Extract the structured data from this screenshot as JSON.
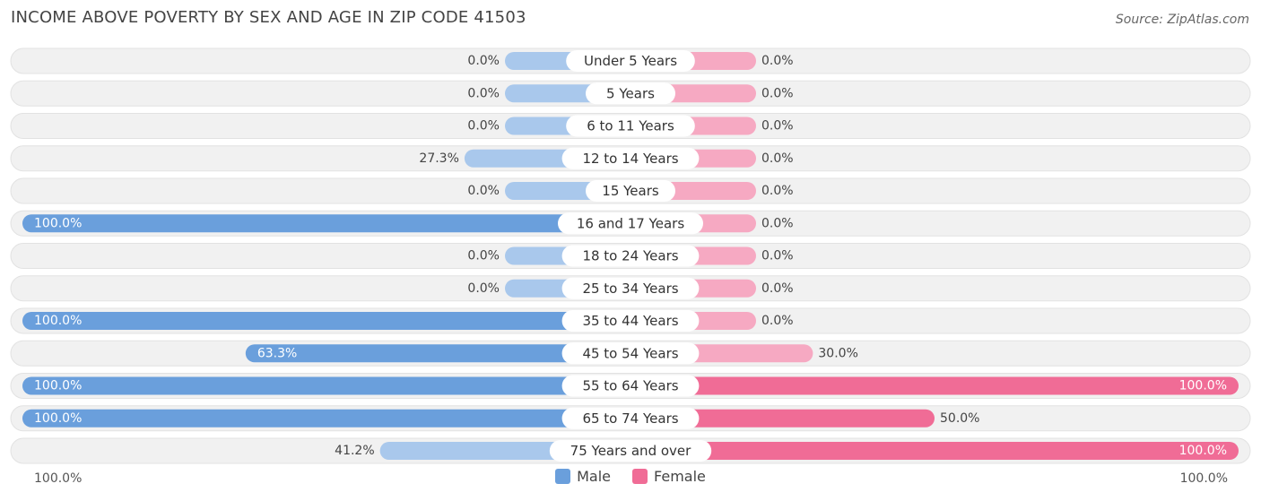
{
  "header": {
    "title": "INCOME ABOVE POVERTY BY SEX AND AGE IN ZIP CODE 41503",
    "source": "Source: ZipAtlas.com"
  },
  "colors": {
    "male": "#6a9fdc",
    "male_light": "#a9c8ec",
    "female": "#f06c96",
    "female_light": "#f6a9c2",
    "track": "#f1f1f1"
  },
  "legend": {
    "male_label": "Male",
    "female_label": "Female"
  },
  "axis": {
    "left_label": "100.0%",
    "right_label": "100.0%"
  },
  "chart_data": {
    "type": "bar",
    "orientation": "horizontal-diverging",
    "categories": [
      "Under 5 Years",
      "5 Years",
      "6 to 11 Years",
      "12 to 14 Years",
      "15 Years",
      "16 and 17 Years",
      "18 to 24 Years",
      "25 to 34 Years",
      "35 to 44 Years",
      "45 to 54 Years",
      "55 to 64 Years",
      "65 to 74 Years",
      "75 Years and over"
    ],
    "series": [
      {
        "name": "Male",
        "values": [
          0.0,
          0.0,
          0.0,
          27.3,
          0.0,
          100.0,
          0.0,
          0.0,
          100.0,
          63.3,
          100.0,
          100.0,
          41.2
        ],
        "labels": [
          "0.0%",
          "0.0%",
          "0.0%",
          "27.3%",
          "0.0%",
          "100.0%",
          "0.0%",
          "0.0%",
          "100.0%",
          "63.3%",
          "100.0%",
          "100.0%",
          "41.2%"
        ]
      },
      {
        "name": "Female",
        "values": [
          0.0,
          0.0,
          0.0,
          0.0,
          0.0,
          0.0,
          0.0,
          0.0,
          0.0,
          30.0,
          100.0,
          50.0,
          100.0
        ],
        "labels": [
          "0.0%",
          "0.0%",
          "0.0%",
          "0.0%",
          "0.0%",
          "0.0%",
          "0.0%",
          "0.0%",
          "0.0%",
          "30.0%",
          "100.0%",
          "50.0%",
          "100.0%"
        ]
      }
    ],
    "xlim": [
      0,
      100
    ],
    "legend_position": "bottom-center"
  }
}
